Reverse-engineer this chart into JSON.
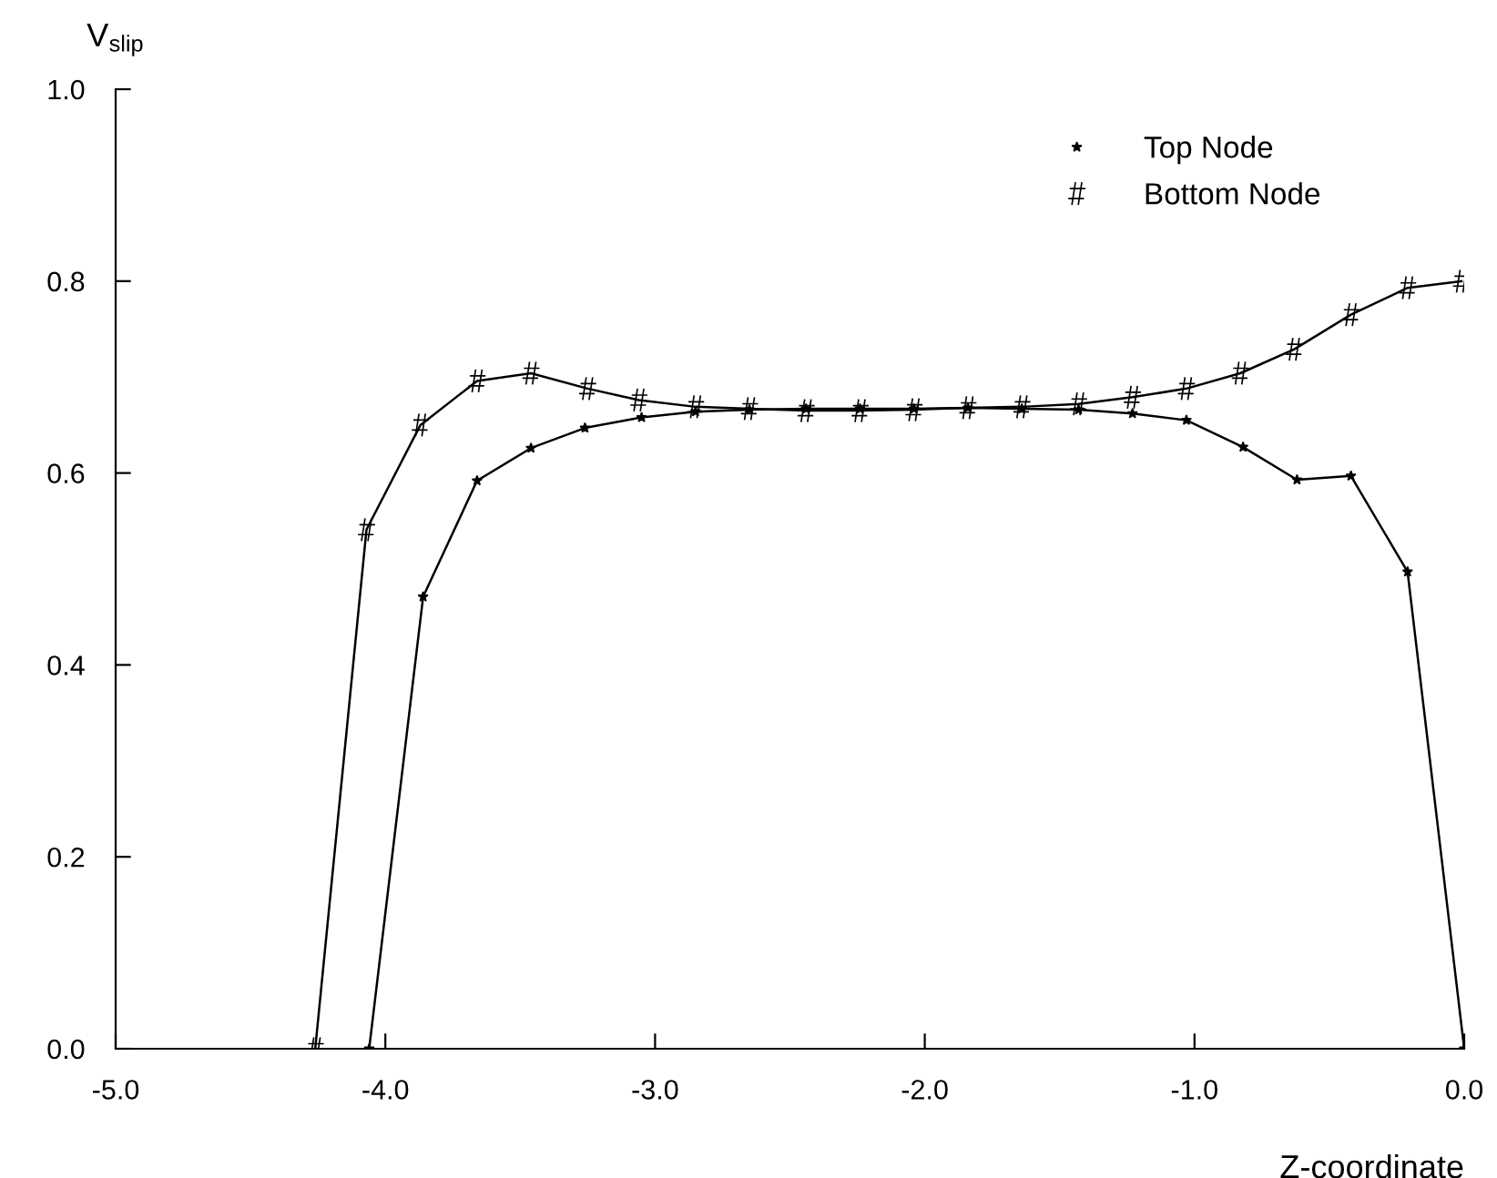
{
  "chart_data": {
    "type": "line",
    "xlabel": "Z-coordinate",
    "ylabel": "V$_{slip}$",
    "xlim": [
      -5.0,
      0.0
    ],
    "xticks": [
      {
        "value": -5,
        "label": "-5.0"
      },
      {
        "value": -4,
        "label": "-4.0"
      },
      {
        "value": -3,
        "label": "-3.0"
      },
      {
        "value": -2,
        "label": "-2.0"
      },
      {
        "value": -1,
        "label": "-1.0"
      },
      {
        "value": 0,
        "label": "0.0"
      }
    ],
    "ylim": [
      0.0,
      1.0
    ],
    "yticks": [
      {
        "value": 0,
        "label": "0.0"
      },
      {
        "value": 0.2,
        "label": "0.2"
      },
      {
        "value": 0.4,
        "label": "0.4"
      },
      {
        "value": 0.6,
        "label": "0.6"
      },
      {
        "value": 0.8,
        "label": "0.8"
      },
      {
        "value": 1.0,
        "label": "1.0"
      }
    ],
    "grid": false,
    "legend": "top right",
    "series": [
      {
        "name": "Top Node",
        "color": "#000000",
        "marker": "star",
        "x": [
          -4.06,
          -3.86,
          -3.66,
          -3.46,
          -3.26,
          -3.05,
          -2.85,
          -2.65,
          -2.44,
          -2.24,
          -2.04,
          -1.84,
          -1.64,
          -1.43,
          -1.23,
          -1.03,
          -0.82,
          -0.62,
          -0.42,
          -0.21,
          0.0
        ],
        "values": [
          0.0,
          0.471,
          0.592,
          0.626,
          0.647,
          0.658,
          0.664,
          0.666,
          0.667,
          0.667,
          0.667,
          0.668,
          0.667,
          0.666,
          0.662,
          0.655,
          0.627,
          0.593,
          0.597,
          0.497,
          0.0
        ]
      },
      {
        "name": "Bottom Node",
        "color": "#000000",
        "marker": "cross",
        "x": [
          -4.26,
          -4.07,
          -3.87,
          -3.66,
          -3.46,
          -3.25,
          -3.06,
          -2.85,
          -2.65,
          -2.44,
          -2.24,
          -2.04,
          -1.84,
          -1.64,
          -1.43,
          -1.23,
          -1.03,
          -0.83,
          -0.63,
          -0.42,
          -0.21,
          -0.01
        ],
        "values": [
          0.0,
          0.541,
          0.65,
          0.696,
          0.704,
          0.688,
          0.676,
          0.669,
          0.667,
          0.665,
          0.665,
          0.666,
          0.668,
          0.669,
          0.672,
          0.679,
          0.688,
          0.704,
          0.729,
          0.765,
          0.793,
          0.8
        ]
      }
    ]
  }
}
